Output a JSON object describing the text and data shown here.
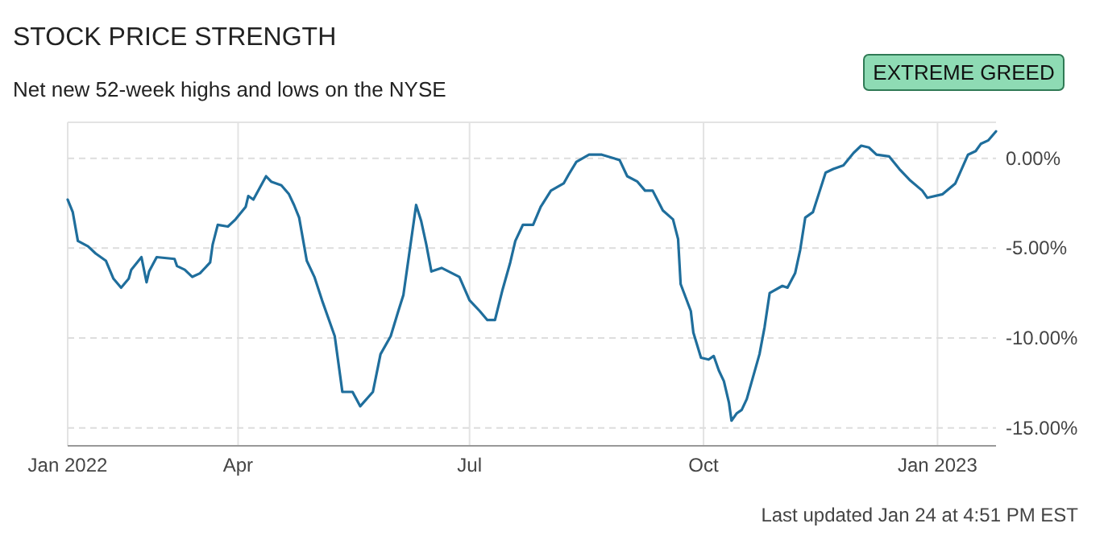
{
  "chart_data": {
    "type": "line",
    "title": "STOCK PRICE STRENGTH",
    "subtitle": "Net new 52-week highs and lows on the NYSE",
    "annotations": [
      "EXTREME GREED",
      "Last updated Jan 24 at 4:51 PM EST"
    ],
    "x": [
      "2022-01-24",
      "2022-01-26",
      "2022-01-28",
      "2022-02-01",
      "2022-02-04",
      "2022-02-08",
      "2022-02-11",
      "2022-02-14",
      "2022-02-17",
      "2022-02-18",
      "2022-02-22",
      "2022-02-24",
      "2022-02-25",
      "2022-02-28",
      "2022-03-07",
      "2022-03-08",
      "2022-03-11",
      "2022-03-14",
      "2022-03-17",
      "2022-03-21",
      "2022-03-22",
      "2022-03-24",
      "2022-03-28",
      "2022-03-31",
      "2022-04-04",
      "2022-04-05",
      "2022-04-07",
      "2022-04-12",
      "2022-04-14",
      "2022-04-18",
      "2022-04-21",
      "2022-04-23",
      "2022-04-25",
      "2022-04-28",
      "2022-05-01",
      "2022-05-04",
      "2022-05-09",
      "2022-05-12",
      "2022-05-16",
      "2022-05-19",
      "2022-05-24",
      "2022-05-27",
      "2022-05-31",
      "2022-06-03",
      "2022-06-05",
      "2022-06-10",
      "2022-06-12",
      "2022-06-14",
      "2022-06-16",
      "2022-06-20",
      "2022-06-27",
      "2022-07-01",
      "2022-07-05",
      "2022-07-08",
      "2022-07-11",
      "2022-07-14",
      "2022-07-17",
      "2022-07-19",
      "2022-07-22",
      "2022-07-26",
      "2022-07-29",
      "2022-08-02",
      "2022-08-07",
      "2022-08-09",
      "2022-08-12",
      "2022-08-17",
      "2022-08-22",
      "2022-08-29",
      "2022-09-01",
      "2022-09-05",
      "2022-09-08",
      "2022-09-11",
      "2022-09-15",
      "2022-09-19",
      "2022-09-21",
      "2022-09-22",
      "2022-09-26",
      "2022-09-27",
      "2022-09-30",
      "2022-10-03",
      "2022-10-05",
      "2022-10-07",
      "2022-10-09",
      "2022-10-11",
      "2022-10-12",
      "2022-10-14",
      "2022-10-16",
      "2022-10-18",
      "2022-10-20",
      "2022-10-23",
      "2022-10-25",
      "2022-10-27",
      "2022-11-01",
      "2022-11-03",
      "2022-11-06",
      "2022-11-08",
      "2022-11-10",
      "2022-11-13",
      "2022-11-18",
      "2022-11-21",
      "2022-11-25",
      "2022-11-29",
      "2022-12-02",
      "2022-12-05",
      "2022-12-08",
      "2022-12-13",
      "2022-12-17",
      "2022-12-21",
      "2022-12-26",
      "2022-12-28",
      "2023-01-03",
      "2023-01-08",
      "2023-01-13",
      "2023-01-16",
      "2023-01-18",
      "2023-01-21",
      "2023-01-24"
    ],
    "series": [
      {
        "color": "#1f6e9c",
        "values": [
          -2.3,
          -3.0,
          -4.6,
          -4.9,
          -5.3,
          -5.7,
          -6.7,
          -7.2,
          -6.7,
          -6.2,
          -5.5,
          -6.9,
          -6.3,
          -5.5,
          -5.6,
          -6.0,
          -6.2,
          -6.6,
          -6.4,
          -5.8,
          -4.8,
          -3.7,
          -3.8,
          -3.4,
          -2.7,
          -2.1,
          -2.3,
          -1.0,
          -1.3,
          -1.5,
          -2.0,
          -2.6,
          -3.3,
          -5.7,
          -6.6,
          -7.9,
          -9.9,
          -13.0,
          -13.0,
          -13.8,
          -13.0,
          -10.9,
          -9.9,
          -8.5,
          -7.6,
          -2.6,
          -3.5,
          -4.8,
          -6.3,
          -6.1,
          -6.6,
          -7.9,
          -8.5,
          -9.0,
          -9.0,
          -7.3,
          -5.8,
          -4.6,
          -3.7,
          -3.7,
          -2.7,
          -1.8,
          -1.4,
          -0.9,
          -0.2,
          0.2,
          0.2,
          -0.1,
          -1.0,
          -1.3,
          -1.8,
          -1.8,
          -2.9,
          -3.4,
          -4.5,
          -7.0,
          -8.5,
          -9.7,
          -11.1,
          -11.2,
          -11.0,
          -11.8,
          -12.4,
          -13.6,
          -14.6,
          -14.2,
          -14.0,
          -13.4,
          -12.4,
          -10.9,
          -9.4,
          -7.5,
          -7.1,
          -7.2,
          -6.4,
          -5.1,
          -3.3,
          -3.0,
          -0.8,
          -0.6,
          -0.4,
          0.3,
          0.7,
          0.6,
          0.2,
          0.1,
          -0.6,
          -1.2,
          -1.8,
          -2.2,
          -2.0,
          -1.4,
          0.2,
          0.4,
          0.8,
          1.0,
          1.5
        ]
      }
    ],
    "xlim": [
      "2022-01-24",
      "2023-01-24"
    ],
    "xticks": [
      {
        "value": "2022-01-24",
        "label": "Jan 2022"
      },
      {
        "value": "2022-04-01",
        "label": "Apr"
      },
      {
        "value": "2022-07-01",
        "label": "Jul"
      },
      {
        "value": "2022-10-01",
        "label": "Oct"
      },
      {
        "value": "2023-01-01",
        "label": "Jan 2023"
      }
    ],
    "ylim": [
      -16,
      2
    ],
    "yticks": [
      {
        "value": 0,
        "label": "0.00%"
      },
      {
        "value": -5,
        "label": "-5.00%"
      },
      {
        "value": -10,
        "label": "-10.00%"
      },
      {
        "value": -15,
        "label": "-15.00%"
      }
    ],
    "grid": true,
    "line_style": "solid",
    "marker": "none"
  }
}
